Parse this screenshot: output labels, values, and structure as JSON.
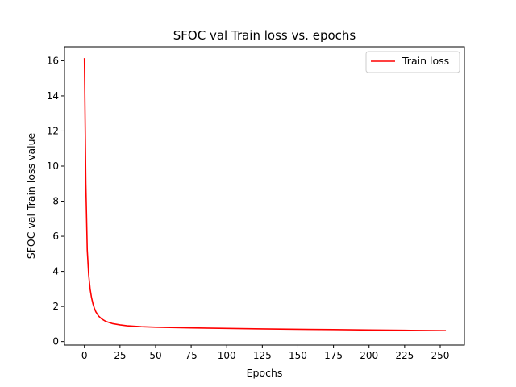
{
  "chart_data": {
    "type": "line",
    "title": "SFOC val Train loss vs. epochs",
    "xlabel": "Epochs",
    "ylabel": "SFOC val Train loss value",
    "xlim": [
      -14,
      267
    ],
    "ylim": [
      -0.2,
      16.8
    ],
    "xticks": [
      0,
      25,
      50,
      75,
      100,
      125,
      150,
      175,
      200,
      225,
      250
    ],
    "yticks": [
      0,
      2,
      4,
      6,
      8,
      10,
      12,
      14,
      16
    ],
    "grid": false,
    "legend": {
      "position": "top-right",
      "entries": [
        "Train loss"
      ]
    },
    "series": [
      {
        "name": "Train loss",
        "color": "#ff0000",
        "x": [
          0,
          1,
          2,
          3,
          4,
          5,
          6,
          7,
          8,
          10,
          12,
          15,
          20,
          25,
          30,
          40,
          50,
          60,
          75,
          100,
          125,
          150,
          175,
          200,
          225,
          254
        ],
        "y": [
          16.15,
          9.0,
          5.2,
          3.8,
          3.0,
          2.5,
          2.15,
          1.9,
          1.7,
          1.45,
          1.3,
          1.15,
          1.02,
          0.95,
          0.9,
          0.85,
          0.82,
          0.8,
          0.78,
          0.75,
          0.72,
          0.7,
          0.68,
          0.66,
          0.64,
          0.62
        ]
      }
    ]
  }
}
